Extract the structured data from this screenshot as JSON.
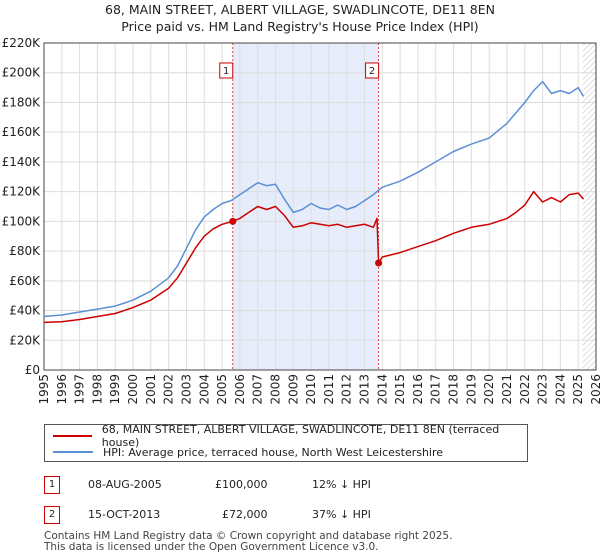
{
  "header": {
    "title": "68, MAIN STREET, ALBERT VILLAGE, SWADLINCOTE, DE11 8EN",
    "subtitle": "Price paid vs. HM Land Registry's House Price Index (HPI)"
  },
  "chart_data": {
    "type": "line",
    "title": "68, MAIN STREET, ALBERT VILLAGE, SWADLINCOTE, DE11 8EN",
    "subtitle": "Price paid vs. HM Land Registry's House Price Index (HPI)",
    "xlabel": "",
    "ylabel": "",
    "xlim": [
      1995,
      2026
    ],
    "ylim": [
      0,
      220000
    ],
    "y_ticks": [
      0,
      20000,
      40000,
      60000,
      80000,
      100000,
      120000,
      140000,
      160000,
      180000,
      200000,
      220000
    ],
    "y_tick_labels": [
      "£0",
      "£20K",
      "£40K",
      "£60K",
      "£80K",
      "£100K",
      "£120K",
      "£140K",
      "£160K",
      "£180K",
      "£200K",
      "£220K"
    ],
    "x_ticks": [
      1995,
      1996,
      1997,
      1998,
      1999,
      2000,
      2001,
      2002,
      2003,
      2004,
      2005,
      2006,
      2007,
      2008,
      2009,
      2010,
      2011,
      2012,
      2013,
      2014,
      2015,
      2016,
      2017,
      2018,
      2019,
      2020,
      2021,
      2022,
      2023,
      2024,
      2025,
      2026
    ],
    "x_tick_labels": [
      "1995",
      "1996",
      "1997",
      "1998",
      "1999",
      "2000",
      "2001",
      "2002",
      "2003",
      "2004",
      "2005",
      "2006",
      "2007",
      "2008",
      "2009",
      "2010",
      "2011",
      "2012",
      "2013",
      "2014",
      "2015",
      "2016",
      "2017",
      "2018",
      "2019",
      "2020",
      "2021",
      "2022",
      "2023",
      "2024",
      "2025",
      "2026"
    ],
    "grid": true,
    "shaded_span": [
      2005.6,
      2013.79
    ],
    "hatched_from": 2025.25,
    "series": [
      {
        "name": "68, MAIN STREET, ALBERT VILLAGE, SWADLINCOTE, DE11 8EN (terraced house)",
        "color": "#cc0000",
        "x": [
          1995,
          1996,
          1997,
          1998,
          1999,
          2000,
          2001,
          2002,
          2002.5,
          2003,
          2003.5,
          2004,
          2004.5,
          2005,
          2005.6,
          2006,
          2006.5,
          2007,
          2007.5,
          2008,
          2008.5,
          2009,
          2009.5,
          2010,
          2010.5,
          2011,
          2011.5,
          2012,
          2012.5,
          2013,
          2013.5,
          2013.7,
          2013.79,
          2014,
          2015,
          2016,
          2017,
          2018,
          2019,
          2020,
          2021,
          2021.5,
          2022,
          2022.5,
          2023,
          2023.5,
          2024,
          2024.5,
          2025,
          2025.3
        ],
        "values": [
          32000,
          32500,
          34000,
          36000,
          38000,
          42000,
          47000,
          55000,
          62000,
          72000,
          82000,
          90000,
          95000,
          98000,
          100000,
          102000,
          106000,
          110000,
          108000,
          110000,
          104000,
          96000,
          97000,
          99000,
          98000,
          97000,
          98000,
          96000,
          97000,
          98000,
          96000,
          102000,
          72000,
          76000,
          79000,
          83000,
          87000,
          92000,
          96000,
          98000,
          102000,
          106000,
          111000,
          120000,
          113000,
          116000,
          113000,
          118000,
          119000,
          115000
        ]
      },
      {
        "name": "HPI: Average price, terraced house, North West Leicestershire",
        "color": "#5b8fd6",
        "x": [
          1995,
          1996,
          1997,
          1998,
          1999,
          2000,
          2001,
          2002,
          2002.5,
          2003,
          2003.5,
          2004,
          2004.5,
          2005,
          2005.5,
          2006,
          2006.5,
          2007,
          2007.5,
          2008,
          2008.5,
          2009,
          2009.5,
          2010,
          2010.5,
          2011,
          2011.5,
          2012,
          2012.5,
          2013,
          2013.5,
          2014,
          2015,
          2016,
          2017,
          2018,
          2019,
          2020,
          2020.5,
          2021,
          2021.5,
          2022,
          2022.5,
          2023,
          2023.5,
          2024,
          2024.5,
          2025,
          2025.3
        ],
        "values": [
          36000,
          37000,
          39000,
          41000,
          43000,
          47000,
          53000,
          62000,
          70000,
          82000,
          94000,
          103000,
          108000,
          112000,
          114000,
          118000,
          122000,
          126000,
          124000,
          125000,
          115000,
          106000,
          108000,
          112000,
          109000,
          108000,
          111000,
          108000,
          110000,
          114000,
          118000,
          123000,
          127000,
          133000,
          140000,
          147000,
          152000,
          156000,
          161000,
          166000,
          173000,
          180000,
          188000,
          194000,
          186000,
          188000,
          186000,
          190000,
          184000
        ]
      }
    ],
    "sale_markers": [
      {
        "label": "1",
        "x": 2005.6,
        "value": 100000
      },
      {
        "label": "2",
        "x": 2013.79,
        "value": 72000
      }
    ]
  },
  "legend": {
    "red_label": "68, MAIN STREET, ALBERT VILLAGE, SWADLINCOTE, DE11 8EN (terraced house)",
    "blue_label": "HPI: Average price, terraced house, North West Leicestershire"
  },
  "transactions": [
    {
      "num": "1",
      "date": "08-AUG-2005",
      "price": "£100,000",
      "hpi": "12% ↓ HPI"
    },
    {
      "num": "2",
      "date": "15-OCT-2013",
      "price": "£72,000",
      "hpi": "37% ↓ HPI"
    }
  ],
  "footer": {
    "line1": "Contains HM Land Registry data © Crown copyright and database right 2025.",
    "line2": "This data is licensed under the Open Government Licence v3.0."
  }
}
